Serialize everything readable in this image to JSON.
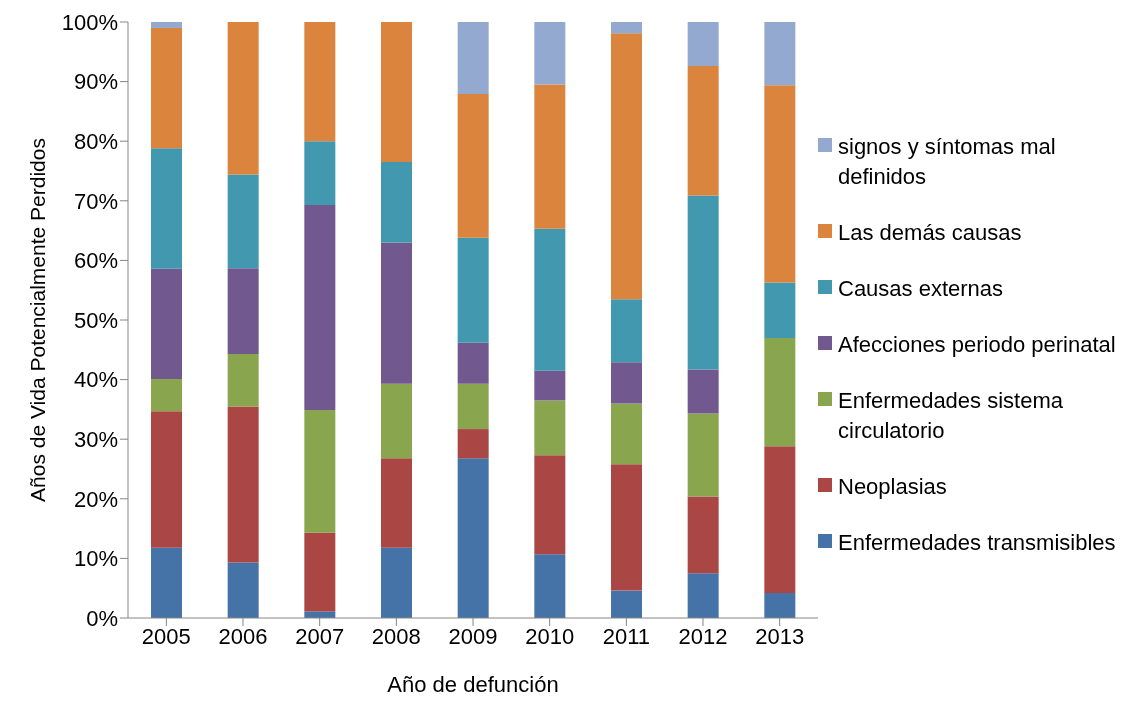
{
  "chart_data": {
    "type": "bar",
    "stacked": true,
    "xlabel": "Año de defunción",
    "ylabel": "Años de Vida Potencialmente Perdidos",
    "categories": [
      "2005",
      "2006",
      "2007",
      "2008",
      "2009",
      "2010",
      "2011",
      "2012",
      "2013"
    ],
    "series": [
      {
        "name": "Enfermedades transmisibles",
        "color": "#4572a7",
        "values": [
          11.8,
          9.3,
          1.1,
          11.8,
          26.8,
          10.7,
          4.6,
          7.5,
          4.2
        ]
      },
      {
        "name": "Neoplasias",
        "color": "#aa4643",
        "values": [
          22.9,
          26.2,
          13.2,
          15.0,
          4.9,
          16.6,
          21.2,
          12.9,
          24.6
        ]
      },
      {
        "name": "Enfermedades sistema circulatorio",
        "color": "#89a54e",
        "values": [
          5.4,
          8.8,
          20.6,
          12.5,
          7.6,
          9.2,
          10.2,
          13.9,
          18.2
        ]
      },
      {
        "name": "Afecciones periodo perinatal",
        "color": "#71588f",
        "values": [
          18.5,
          14.4,
          34.4,
          23.7,
          6.9,
          5.0,
          6.9,
          7.4,
          0
        ]
      },
      {
        "name": "Causas externas",
        "color": "#4198af",
        "values": [
          20.2,
          15.7,
          10.7,
          13.5,
          17.6,
          23.8,
          10.6,
          29.2,
          9.3
        ]
      },
      {
        "name": "Las demás causas",
        "color": "#db843d",
        "values": [
          20.2,
          25.6,
          20.0,
          23.5,
          24.1,
          24.2,
          44.6,
          21.7,
          33.1
        ]
      },
      {
        "name": "signos y síntomas mal definidos",
        "color": "#93a9cf",
        "values": [
          1.0,
          0,
          0,
          0,
          12.1,
          10.5,
          1.9,
          7.4,
          10.6
        ]
      }
    ],
    "ylim": [
      0,
      100
    ],
    "yticks": [
      {
        "value": 0,
        "label": "0%"
      },
      {
        "value": 10,
        "label": "10%"
      },
      {
        "value": 20,
        "label": "20%"
      },
      {
        "value": 30,
        "label": "30%"
      },
      {
        "value": 40,
        "label": "40%"
      },
      {
        "value": 50,
        "label": "50%"
      },
      {
        "value": 60,
        "label": "60%"
      },
      {
        "value": 70,
        "label": "70%"
      },
      {
        "value": 80,
        "label": "80%"
      },
      {
        "value": 90,
        "label": "90%"
      },
      {
        "value": 100,
        "label": "100%"
      }
    ],
    "grid": false,
    "legend": "right"
  }
}
